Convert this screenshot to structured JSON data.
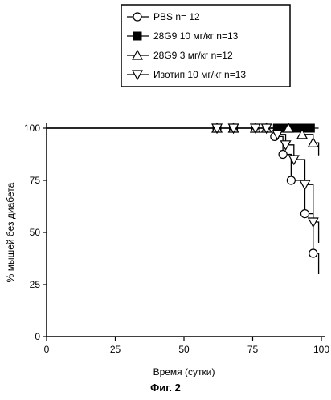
{
  "caption": "Фиг. 2",
  "chart_data": {
    "type": "line",
    "subtype": "kaplan-meier survival curve",
    "xlabel": "Время (сутки)",
    "ylabel": "% мышей без диабета",
    "xlim": [
      0,
      100
    ],
    "ylim": [
      0,
      100
    ],
    "xticks": [
      0,
      25,
      50,
      75,
      100
    ],
    "yticks": [
      0,
      25,
      50,
      75,
      100
    ],
    "grid": false,
    "legend_position": "top-right",
    "series": [
      {
        "name": "PBS n= 12",
        "marker": "circle-open",
        "x": [
          0,
          62,
          68,
          76,
          83,
          86,
          89,
          94,
          97,
          99
        ],
        "y": [
          100,
          100,
          100,
          100,
          96,
          87.5,
          75,
          59,
          40,
          30
        ],
        "markers": [
          [
            62,
            100
          ],
          [
            68,
            100
          ],
          [
            76,
            100
          ],
          [
            83,
            96
          ],
          [
            86,
            87.5
          ],
          [
            89,
            75
          ],
          [
            94,
            59
          ],
          [
            97,
            40
          ]
        ]
      },
      {
        "name": "28G9 10 мг/кг n=13",
        "marker": "square-filled",
        "x": [
          0,
          62,
          68,
          76,
          84,
          87,
          89,
          91,
          94,
          96,
          99
        ],
        "y": [
          100,
          100,
          100,
          100,
          100,
          100,
          100,
          100,
          100,
          100,
          100
        ],
        "markers": [
          [
            62,
            100
          ],
          [
            68,
            100
          ],
          [
            76,
            100
          ],
          [
            84,
            100
          ],
          [
            87,
            100
          ],
          [
            89,
            100
          ],
          [
            91,
            100
          ],
          [
            94,
            100
          ],
          [
            96,
            100
          ]
        ]
      },
      {
        "name": "28G9 3 мг/кг n=12",
        "marker": "triangle-up-open",
        "x": [
          0,
          62,
          68,
          76,
          80,
          88,
          93,
          97,
          99
        ],
        "y": [
          100,
          100,
          100,
          100,
          100,
          100,
          97,
          93,
          87
        ],
        "markers": [
          [
            62,
            100
          ],
          [
            68,
            100
          ],
          [
            76,
            100
          ],
          [
            80,
            100
          ],
          [
            88,
            100
          ],
          [
            93,
            97
          ],
          [
            97,
            93
          ]
        ]
      },
      {
        "name": "Изотип 10 мг/кг n=13",
        "marker": "triangle-down-open",
        "x": [
          0,
          62,
          68,
          76,
          80,
          84,
          87,
          90,
          94,
          97,
          99
        ],
        "y": [
          100,
          100,
          100,
          100,
          100,
          97,
          92,
          85,
          73,
          55,
          45
        ],
        "markers": [
          [
            62,
            100
          ],
          [
            68,
            100
          ],
          [
            76,
            100
          ],
          [
            80,
            100
          ],
          [
            84,
            97
          ],
          [
            87,
            92
          ],
          [
            90,
            85
          ],
          [
            94,
            73
          ],
          [
            97,
            55
          ]
        ]
      }
    ]
  }
}
